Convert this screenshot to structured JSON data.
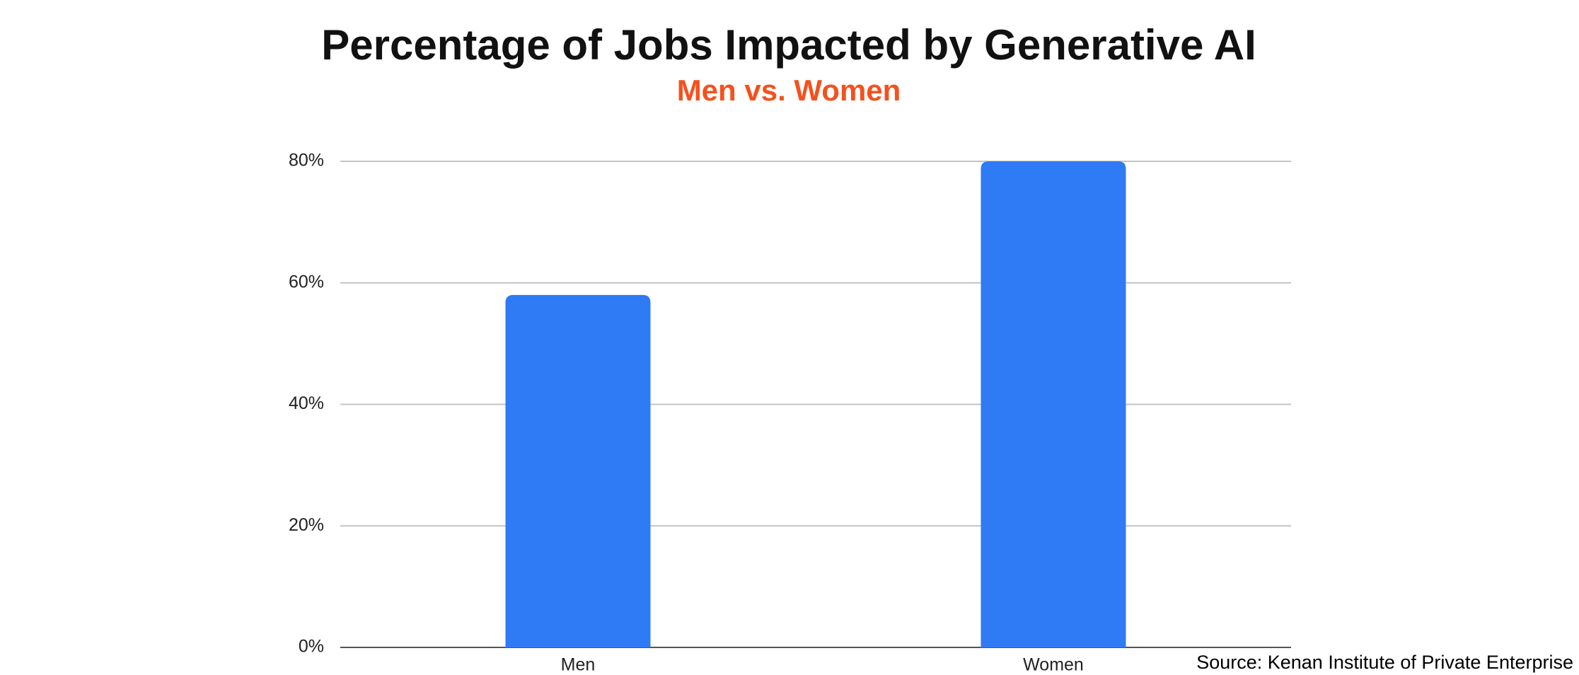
{
  "chart_data": {
    "type": "bar",
    "title": "Percentage of Jobs Impacted by Generative AI",
    "subtitle": "Men vs. Women",
    "subtitle_color": "#f4511e",
    "categories": [
      "Men",
      "Women"
    ],
    "values": [
      58,
      80
    ],
    "color": "#2f7af5",
    "ylim": [
      0,
      80
    ],
    "yticks": [
      {
        "value": 0,
        "label": "0%"
      },
      {
        "value": 20,
        "label": "20%"
      },
      {
        "value": 40,
        "label": "40%"
      },
      {
        "value": 60,
        "label": "60%"
      },
      {
        "value": 80,
        "label": "80%"
      }
    ],
    "grid": true,
    "source": "Source: Kenan Institute of Private Enterprise"
  }
}
